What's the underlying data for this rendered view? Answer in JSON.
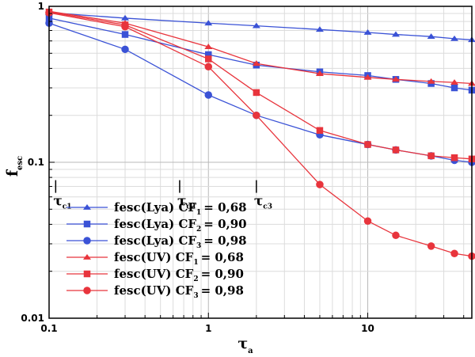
{
  "chart_data": {
    "type": "line",
    "xscale": "log",
    "yscale": "log",
    "xlim": [
      0.1,
      45
    ],
    "ylim": [
      0.01,
      1
    ],
    "grid": true,
    "legend_position": "bottom-left",
    "xlabel": {
      "main": "τ",
      "sub": "a"
    },
    "ylabel": {
      "main": "f",
      "sub": "esc"
    },
    "xticks": [
      {
        "value": 0.1,
        "label": "0.1"
      },
      {
        "value": 1,
        "label": "1"
      },
      {
        "value": 10,
        "label": "10"
      }
    ],
    "yticks": [
      {
        "value": 0.01,
        "label": "0.01"
      },
      {
        "value": 0.1,
        "label": "0.1"
      },
      {
        "value": 1,
        "label": "1"
      }
    ],
    "annotations": [
      {
        "x": 0.11,
        "y": 0.058,
        "main": "τ",
        "sub": "c1"
      },
      {
        "x": 0.66,
        "y": 0.058,
        "main": "τ",
        "sub": "c2"
      },
      {
        "x": 2.0,
        "y": 0.058,
        "main": "τ",
        "sub": "c3"
      }
    ],
    "series": [
      {
        "name": "fesc(Lya) CF",
        "cf_sub": "1",
        "cf_value": "= 0,68",
        "color": "#3a52d6",
        "marker": "triangle",
        "points": [
          [
            0.1,
            0.91
          ],
          [
            0.3,
            0.84
          ],
          [
            1,
            0.78
          ],
          [
            2,
            0.75
          ],
          [
            5,
            0.71
          ],
          [
            10,
            0.68
          ],
          [
            15,
            0.66
          ],
          [
            25,
            0.64
          ],
          [
            35,
            0.62
          ],
          [
            45,
            0.61
          ]
        ]
      },
      {
        "name": "fesc(Lya) CF",
        "cf_sub": "2",
        "cf_value": "= 0,90",
        "color": "#3a52d6",
        "marker": "square",
        "points": [
          [
            0.1,
            0.84
          ],
          [
            0.3,
            0.66
          ],
          [
            1,
            0.49
          ],
          [
            2,
            0.42
          ],
          [
            5,
            0.38
          ],
          [
            10,
            0.36
          ],
          [
            15,
            0.34
          ],
          [
            25,
            0.32
          ],
          [
            35,
            0.3
          ],
          [
            45,
            0.29
          ]
        ]
      },
      {
        "name": "fesc(Lya) CF",
        "cf_sub": "3",
        "cf_value": "= 0,98",
        "color": "#3a52d6",
        "marker": "circle",
        "points": [
          [
            0.1,
            0.78
          ],
          [
            0.3,
            0.53
          ],
          [
            1,
            0.27
          ],
          [
            2,
            0.2
          ],
          [
            5,
            0.15
          ],
          [
            10,
            0.13
          ],
          [
            15,
            0.12
          ],
          [
            25,
            0.11
          ],
          [
            35,
            0.103
          ],
          [
            45,
            0.1
          ]
        ]
      },
      {
        "name": "fesc(UV) CF",
        "cf_sub": "1",
        "cf_value": "= 0,68",
        "color": "#e8343c",
        "marker": "triangle",
        "points": [
          [
            0.1,
            0.93
          ],
          [
            0.3,
            0.78
          ],
          [
            1,
            0.55
          ],
          [
            2,
            0.43
          ],
          [
            5,
            0.37
          ],
          [
            10,
            0.35
          ],
          [
            15,
            0.34
          ],
          [
            25,
            0.33
          ],
          [
            35,
            0.325
          ],
          [
            45,
            0.32
          ]
        ]
      },
      {
        "name": "fesc(UV) CF",
        "cf_sub": "2",
        "cf_value": "= 0,90",
        "color": "#e8343c",
        "marker": "square",
        "points": [
          [
            0.1,
            0.92
          ],
          [
            0.3,
            0.76
          ],
          [
            1,
            0.46
          ],
          [
            2,
            0.28
          ],
          [
            5,
            0.16
          ],
          [
            10,
            0.13
          ],
          [
            15,
            0.12
          ],
          [
            25,
            0.11
          ],
          [
            35,
            0.107
          ],
          [
            45,
            0.105
          ]
        ]
      },
      {
        "name": "fesc(UV) CF",
        "cf_sub": "3",
        "cf_value": "= 0,98",
        "color": "#e8343c",
        "marker": "circle",
        "points": [
          [
            0.1,
            0.91
          ],
          [
            0.3,
            0.74
          ],
          [
            1,
            0.41
          ],
          [
            2,
            0.2
          ],
          [
            5,
            0.072
          ],
          [
            10,
            0.042
          ],
          [
            15,
            0.034
          ],
          [
            25,
            0.029
          ],
          [
            35,
            0.026
          ],
          [
            45,
            0.025
          ]
        ]
      }
    ]
  }
}
